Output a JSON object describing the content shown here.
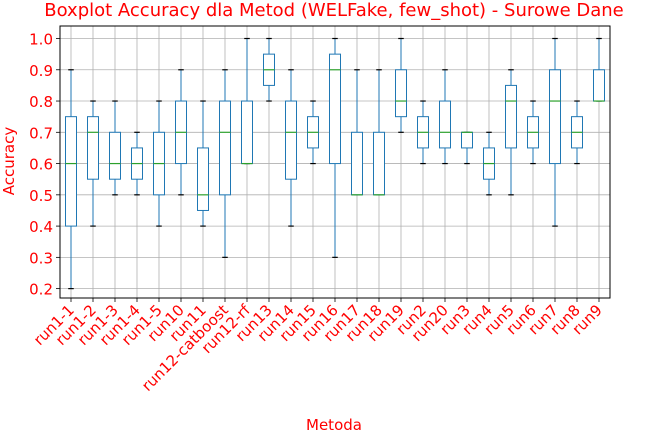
{
  "chart_data": {
    "type": "boxplot",
    "title": "Boxplot Accuracy dla Metod (WELFake, few_shot) - Surowe Dane",
    "xlabel": "Metoda",
    "ylabel": "Accuracy",
    "ylim": [
      0.17,
      1.04
    ],
    "yticks": [
      "0.2",
      "0.3",
      "0.4",
      "0.5",
      "0.6",
      "0.7",
      "0.8",
      "0.9",
      "1.0"
    ],
    "grid": true,
    "text_color": "#ff0000",
    "box_color": "#1f77b4",
    "median_color": "#2ca02c",
    "categories": [
      "run1-1",
      "run1-2",
      "run1-3",
      "run1-4",
      "run1-5",
      "run10",
      "run11",
      "run12-catboost",
      "run12-rf",
      "run13",
      "run14",
      "run15",
      "run16",
      "run17",
      "run18",
      "run19",
      "run2",
      "run20",
      "run3",
      "run4",
      "run5",
      "run6",
      "run7",
      "run8",
      "run9"
    ],
    "boxes": [
      {
        "min": 0.2,
        "q1": 0.4,
        "median": 0.6,
        "q3": 0.75,
        "max": 0.9
      },
      {
        "min": 0.4,
        "q1": 0.55,
        "median": 0.7,
        "q3": 0.75,
        "max": 0.8
      },
      {
        "min": 0.5,
        "q1": 0.55,
        "median": 0.6,
        "q3": 0.7,
        "max": 0.8
      },
      {
        "min": 0.5,
        "q1": 0.55,
        "median": 0.6,
        "q3": 0.65,
        "max": 0.7
      },
      {
        "min": 0.4,
        "q1": 0.5,
        "median": 0.6,
        "q3": 0.7,
        "max": 0.8
      },
      {
        "min": 0.5,
        "q1": 0.6,
        "median": 0.7,
        "q3": 0.8,
        "max": 0.9
      },
      {
        "min": 0.4,
        "q1": 0.45,
        "median": 0.5,
        "q3": 0.65,
        "max": 0.8
      },
      {
        "min": 0.3,
        "q1": 0.5,
        "median": 0.7,
        "q3": 0.8,
        "max": 0.9
      },
      {
        "min": 0.6,
        "q1": 0.6,
        "median": 0.6,
        "q3": 0.8,
        "max": 1.0
      },
      {
        "min": 0.8,
        "q1": 0.85,
        "median": 0.9,
        "q3": 0.95,
        "max": 1.0
      },
      {
        "min": 0.4,
        "q1": 0.55,
        "median": 0.7,
        "q3": 0.8,
        "max": 0.9
      },
      {
        "min": 0.6,
        "q1": 0.65,
        "median": 0.7,
        "q3": 0.75,
        "max": 0.8
      },
      {
        "min": 0.3,
        "q1": 0.6,
        "median": 0.9,
        "q3": 0.95,
        "max": 1.0
      },
      {
        "min": 0.5,
        "q1": 0.5,
        "median": 0.5,
        "q3": 0.7,
        "max": 0.9
      },
      {
        "min": 0.5,
        "q1": 0.5,
        "median": 0.5,
        "q3": 0.7,
        "max": 0.9
      },
      {
        "min": 0.7,
        "q1": 0.75,
        "median": 0.8,
        "q3": 0.9,
        "max": 1.0
      },
      {
        "min": 0.6,
        "q1": 0.65,
        "median": 0.7,
        "q3": 0.75,
        "max": 0.8
      },
      {
        "min": 0.6,
        "q1": 0.65,
        "median": 0.7,
        "q3": 0.8,
        "max": 0.9
      },
      {
        "min": 0.6,
        "q1": 0.65,
        "median": 0.7,
        "q3": 0.7,
        "max": 0.7
      },
      {
        "min": 0.5,
        "q1": 0.55,
        "median": 0.6,
        "q3": 0.65,
        "max": 0.7
      },
      {
        "min": 0.5,
        "q1": 0.65,
        "median": 0.8,
        "q3": 0.85,
        "max": 0.9
      },
      {
        "min": 0.6,
        "q1": 0.65,
        "median": 0.7,
        "q3": 0.75,
        "max": 0.8
      },
      {
        "min": 0.4,
        "q1": 0.6,
        "median": 0.8,
        "q3": 0.9,
        "max": 1.0
      },
      {
        "min": 0.6,
        "q1": 0.65,
        "median": 0.7,
        "q3": 0.75,
        "max": 0.8
      },
      {
        "min": 0.8,
        "q1": 0.8,
        "median": 0.8,
        "q3": 0.9,
        "max": 1.0
      }
    ]
  }
}
